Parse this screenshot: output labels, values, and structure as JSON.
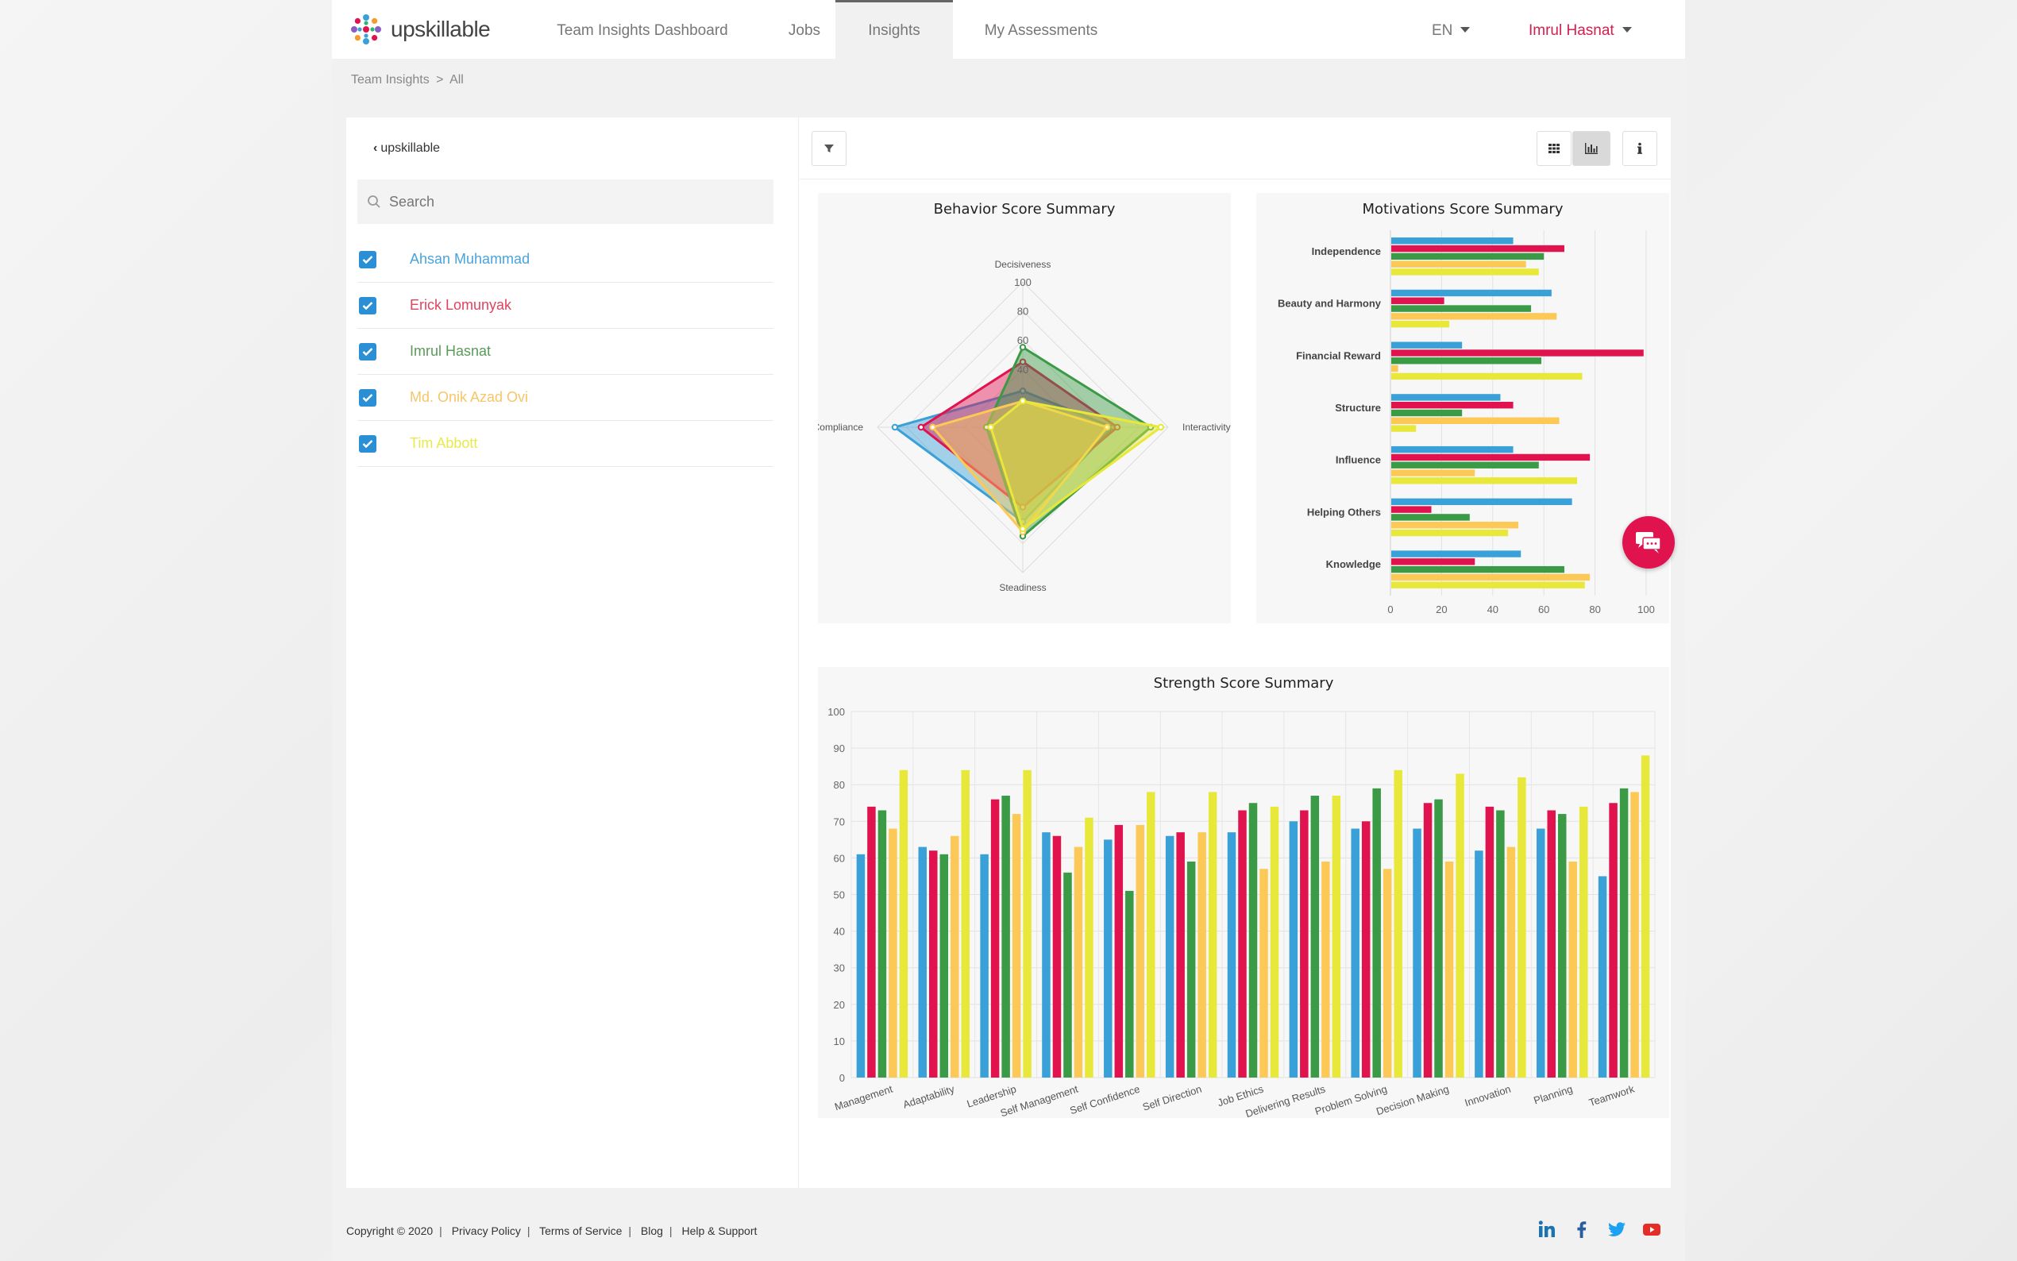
{
  "brand": {
    "name": "upskillable"
  },
  "nav": {
    "items": [
      {
        "label": "Team Insights Dashboard"
      },
      {
        "label": "Jobs"
      },
      {
        "label": "Insights"
      },
      {
        "label": "My Assessments"
      }
    ],
    "active": "Insights",
    "language": "EN",
    "user": "Imrul Hasnat"
  },
  "breadcrumb": {
    "parent": "Team Insights",
    "separator": ">",
    "current": "All"
  },
  "sidebar": {
    "back_label": "upskillable",
    "search_placeholder": "Search",
    "members": [
      {
        "name": "Ahsan Muhammad",
        "checked": true,
        "color": "#4aa3d9"
      },
      {
        "name": "Erick Lomunyak",
        "checked": true,
        "color": "#e0435e"
      },
      {
        "name": "Imrul Hasnat",
        "checked": true,
        "color": "#5a9a5a"
      },
      {
        "name": "Md. Onik Azad Ovi",
        "checked": true,
        "color": "#f5c66a"
      },
      {
        "name": "Tim Abbott",
        "checked": true,
        "color": "#e7ea4a"
      }
    ]
  },
  "colors": {
    "accent": "#d21e4f",
    "series": [
      "#3aa0d8",
      "#e0134f",
      "#3a9a45",
      "#fcc957",
      "#e7e83a"
    ]
  },
  "icons": [
    "filter-icon",
    "grid-view-icon",
    "chart-view-icon",
    "info-icon",
    "chat-icon",
    "linkedin-icon",
    "facebook-icon",
    "twitter-icon",
    "youtube-icon"
  ],
  "chart_data": [
    {
      "type": "radar",
      "title": "Behavior Score Summary",
      "axes": [
        "Decisiveness",
        "Interactivity",
        "Steadiness",
        "Compliance"
      ],
      "rmax": 100,
      "ticks": [
        40,
        60,
        80,
        100
      ],
      "series": [
        {
          "name": "Ahsan Muhammad",
          "values": [
            25,
            62,
            65,
            88
          ]
        },
        {
          "name": "Erick Lomunyak",
          "values": [
            45,
            65,
            55,
            70
          ]
        },
        {
          "name": "Imrul Hasnat",
          "values": [
            55,
            88,
            75,
            25
          ]
        },
        {
          "name": "Md. Onik Azad Ovi",
          "values": [
            18,
            58,
            72,
            62
          ]
        },
        {
          "name": "Tim Abbott",
          "values": [
            18,
            95,
            70,
            22
          ]
        }
      ]
    },
    {
      "type": "bar",
      "orientation": "horizontal",
      "title": "Motivations Score Summary",
      "categories": [
        "Independence",
        "Beauty and Harmony",
        "Financial Reward",
        "Structure",
        "Influence",
        "Helping Others",
        "Knowledge"
      ],
      "xlim": [
        0,
        100
      ],
      "xticks": [
        0,
        20,
        40,
        60,
        80,
        100
      ],
      "series": [
        {
          "name": "Ahsan Muhammad",
          "values": [
            48,
            63,
            28,
            43,
            48,
            71,
            51
          ]
        },
        {
          "name": "Erick Lomunyak",
          "values": [
            68,
            21,
            99,
            48,
            78,
            16,
            33
          ]
        },
        {
          "name": "Imrul Hasnat",
          "values": [
            60,
            55,
            59,
            28,
            58,
            31,
            68
          ]
        },
        {
          "name": "Md. Onik Azad Ovi",
          "values": [
            53,
            65,
            3,
            66,
            33,
            50,
            78
          ]
        },
        {
          "name": "Tim Abbott",
          "values": [
            58,
            23,
            75,
            10,
            73,
            46,
            76
          ]
        }
      ]
    },
    {
      "type": "bar",
      "title": "Strength Score Summary",
      "categories": [
        "Management",
        "Adaptability",
        "Leadership",
        "Self Management",
        "Self Confidence",
        "Self Direction",
        "Job Ethics",
        "Delivering Results",
        "Problem Solving",
        "Decision Making",
        "Innovation",
        "Planning",
        "Teamwork"
      ],
      "ylim": [
        0,
        100
      ],
      "yticks": [
        0,
        10,
        20,
        30,
        40,
        50,
        60,
        70,
        80,
        90,
        100
      ],
      "series": [
        {
          "name": "Ahsan Muhammad",
          "values": [
            61,
            63,
            61,
            67,
            65,
            66,
            67,
            70,
            68,
            68,
            62,
            68,
            55
          ]
        },
        {
          "name": "Erick Lomunyak",
          "values": [
            74,
            62,
            76,
            66,
            69,
            67,
            73,
            73,
            70,
            75,
            74,
            73,
            75
          ]
        },
        {
          "name": "Imrul Hasnat",
          "values": [
            73,
            61,
            77,
            56,
            51,
            59,
            75,
            77,
            79,
            76,
            73,
            72,
            79
          ]
        },
        {
          "name": "Md. Onik Azad Ovi",
          "values": [
            68,
            66,
            72,
            63,
            69,
            67,
            57,
            59,
            57,
            59,
            63,
            59,
            78
          ]
        },
        {
          "name": "Tim Abbott",
          "values": [
            84,
            84,
            84,
            71,
            78,
            78,
            74,
            77,
            84,
            83,
            82,
            74,
            88
          ]
        }
      ]
    }
  ],
  "footer": {
    "copyright": "Copyright © 2020",
    "links": [
      "Privacy Policy",
      "Terms of Service",
      "Blog",
      "Help & Support"
    ]
  }
}
